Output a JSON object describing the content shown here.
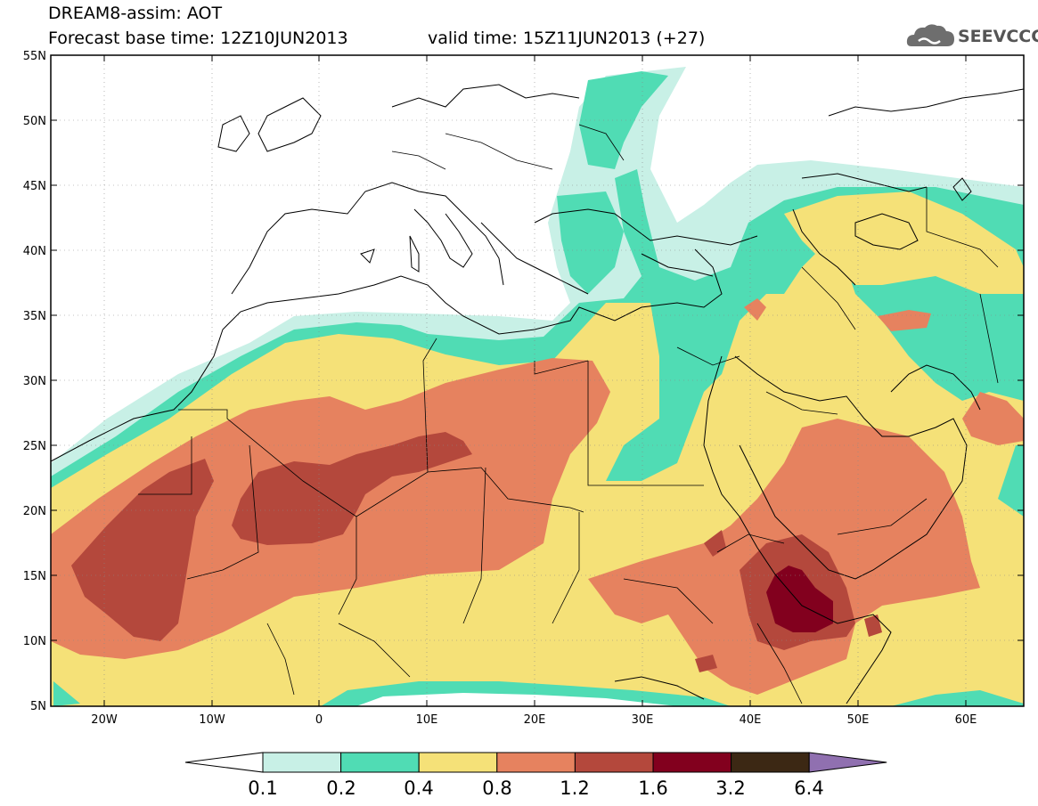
{
  "header": {
    "title": "DREAM8-assim: AOT",
    "base_time": "Forecast base time: 12Z10JUN2013",
    "valid_time": "valid time: 15Z11JUN2013 (+27)"
  },
  "logo": {
    "text": "SEEVCCC",
    "icon": "cloud-icon"
  },
  "map": {
    "lat_labels": [
      "55N",
      "50N",
      "45N",
      "40N",
      "35N",
      "30N",
      "25N",
      "20N",
      "15N",
      "10N",
      "5N"
    ],
    "lon_labels": [
      "20W",
      "10W",
      "0",
      "10E",
      "20E",
      "30E",
      "40E",
      "50E",
      "60E"
    ]
  },
  "legend": {
    "labels": [
      "0.1",
      "0.2",
      "0.4",
      "0.8",
      "1.2",
      "1.6",
      "3.2",
      "6.4"
    ],
    "colors": [
      "#ffffff",
      "#c8f0e6",
      "#50dcb4",
      "#f5e178",
      "#e6825f",
      "#b4483c",
      "#82001e",
      "#3c2814",
      "#9070b0"
    ]
  },
  "colors": {
    "c0": "#c8f0e6",
    "c1": "#50dcb4",
    "c2": "#f5e178",
    "c3": "#e6825f",
    "c4": "#b4483c",
    "c5": "#82001e"
  }
}
